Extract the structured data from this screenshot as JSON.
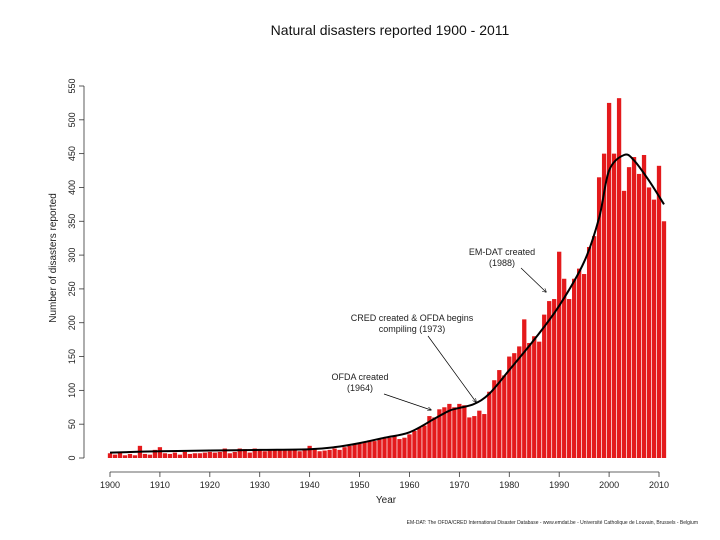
{
  "chart_data": {
    "type": "bar",
    "title": "Natural disasters reported 1900 - 2011",
    "xlabel": "Year",
    "ylabel": "Number of disasters reported",
    "xlim": [
      1900,
      2011
    ],
    "ylim": [
      0,
      550
    ],
    "x_ticks": [
      1900,
      1910,
      1920,
      1930,
      1940,
      1950,
      1960,
      1970,
      1980,
      1990,
      2000,
      2010
    ],
    "y_ticks": [
      0,
      50,
      100,
      150,
      200,
      250,
      300,
      350,
      400,
      450,
      500,
      550
    ],
    "bar_color": "#e41a1c",
    "trend_color": "#000000",
    "source": "EM-DAT: The OFDA/CRED International Disaster Database - www.emdat.be - Université Catholique de Louvain, Brussels - Belgium",
    "series": [
      {
        "name": "Number of disasters reported",
        "years": [
          1900,
          1901,
          1902,
          1903,
          1904,
          1905,
          1906,
          1907,
          1908,
          1909,
          1910,
          1911,
          1912,
          1913,
          1914,
          1915,
          1916,
          1917,
          1918,
          1919,
          1920,
          1921,
          1922,
          1923,
          1924,
          1925,
          1926,
          1927,
          1928,
          1929,
          1930,
          1931,
          1932,
          1933,
          1934,
          1935,
          1936,
          1937,
          1938,
          1939,
          1940,
          1941,
          1942,
          1943,
          1944,
          1945,
          1946,
          1947,
          1948,
          1949,
          1950,
          1951,
          1952,
          1953,
          1954,
          1955,
          1956,
          1957,
          1958,
          1959,
          1960,
          1961,
          1962,
          1963,
          1964,
          1965,
          1966,
          1967,
          1968,
          1969,
          1970,
          1971,
          1972,
          1973,
          1974,
          1975,
          1976,
          1977,
          1978,
          1979,
          1980,
          1981,
          1982,
          1983,
          1984,
          1985,
          1986,
          1987,
          1988,
          1989,
          1990,
          1991,
          1992,
          1993,
          1994,
          1995,
          1996,
          1997,
          1998,
          1999,
          2000,
          2001,
          2002,
          2003,
          2004,
          2005,
          2006,
          2007,
          2008,
          2009,
          2010,
          2011
        ],
        "values": [
          7,
          5,
          9,
          4,
          6,
          4,
          18,
          6,
          5,
          12,
          16,
          7,
          6,
          8,
          5,
          9,
          6,
          7,
          7,
          8,
          9,
          8,
          9,
          14,
          7,
          9,
          14,
          13,
          8,
          14,
          12,
          10,
          11,
          13,
          12,
          11,
          11,
          12,
          10,
          12,
          18,
          14,
          10,
          11,
          12,
          14,
          12,
          16,
          18,
          20,
          22,
          24,
          26,
          25,
          28,
          29,
          30,
          32,
          28,
          30,
          35,
          40,
          45,
          48,
          62,
          60,
          72,
          75,
          80,
          75,
          80,
          78,
          60,
          62,
          70,
          65,
          98,
          115,
          130,
          122,
          150,
          155,
          165,
          205,
          170,
          180,
          172,
          212,
          232,
          235,
          305,
          265,
          235,
          265,
          280,
          272,
          312,
          328,
          415,
          450,
          525,
          450,
          532,
          395,
          430,
          445,
          420,
          448,
          400,
          382,
          432,
          350
        ]
      }
    ],
    "trend": {
      "name": "Trend",
      "years": [
        1900,
        1910,
        1920,
        1930,
        1940,
        1945,
        1950,
        1955,
        1960,
        1965,
        1968,
        1970,
        1973,
        1976,
        1980,
        1985,
        1990,
        1995,
        1998,
        2000,
        2003,
        2005,
        2008,
        2011
      ],
      "values": [
        8,
        10,
        11,
        12,
        13,
        16,
        22,
        30,
        38,
        58,
        70,
        74,
        80,
        95,
        130,
        175,
        225,
        290,
        355,
        425,
        448,
        440,
        410,
        375
      ]
    },
    "annotations": [
      {
        "label": "OFDA created",
        "year_text": "(1964)",
        "year": 1964
      },
      {
        "label": "CRED created & OFDA begins",
        "year_text": "compiling (1973)",
        "year": 1973
      },
      {
        "label": "EM-DAT created",
        "year_text": "(1988)",
        "year": 1988
      }
    ]
  }
}
